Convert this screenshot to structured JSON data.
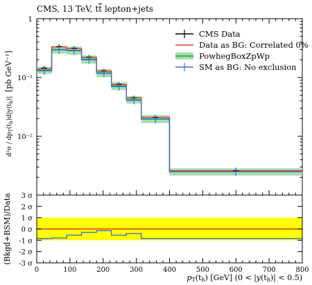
{
  "title": "CMS, 13 TeV, t̄t lepton+jets",
  "chart_data": {
    "type": "step-histogram-with-ratio",
    "title": "CMS, 13 TeV, tt̄ lepton+jets",
    "xlabel": "p_T(t_h) [GeV] (0 < |y(t_h)| < 0.5)",
    "ylabel": "d²σ / dp_T(t_h) d|y(t_h)| [pb GeV⁻¹]",
    "ratio_ylabel": "(Bkgd+BSM)/Data",
    "xlim": [
      0,
      800
    ],
    "ylim": [
      0.001,
      1
    ],
    "log_y": true,
    "bin_edges": [
      0,
      45,
      90,
      135,
      180,
      225,
      270,
      315,
      400,
      800
    ],
    "x_ticks": [
      0,
      100,
      200,
      300,
      400,
      500,
      600,
      700,
      800
    ],
    "x_tick_labels": [
      "0",
      "100",
      "200",
      "300",
      "400",
      "500",
      "600",
      "700",
      "800"
    ],
    "y_ticks": [
      {
        "value": 1,
        "label": "1"
      },
      {
        "value": 0.1,
        "label": "10⁻¹"
      },
      {
        "value": 0.01,
        "label": "10⁻²"
      }
    ],
    "ratio_ylim": [
      -3,
      3
    ],
    "ratio_ticks": [
      {
        "value": 3,
        "label": "3 σ"
      },
      {
        "value": 2,
        "label": "2 σ"
      },
      {
        "value": 1,
        "label": "1 σ"
      },
      {
        "value": 0,
        "label": "0 σ"
      },
      {
        "value": -1,
        "label": "-1 σ"
      },
      {
        "value": -2,
        "label": "-2 σ"
      },
      {
        "value": -3,
        "label": "-3 σ"
      }
    ],
    "ratio_band": [
      -1,
      1
    ],
    "legend_position": "top-right",
    "series": [
      {
        "name": "CMS Data",
        "color": "#000000",
        "style": "points-with-errors",
        "values": [
          0.145,
          0.335,
          0.315,
          0.222,
          0.13,
          0.077,
          0.045,
          0.021,
          0.0026
        ],
        "errors": [
          0.012,
          0.03,
          0.026,
          0.018,
          0.011,
          0.007,
          0.004,
          0.002,
          0.0002
        ]
      },
      {
        "name": "Data as BG: Correlated 0%",
        "color": "#e8382b",
        "style": "step",
        "values": [
          0.14,
          0.33,
          0.31,
          0.22,
          0.128,
          0.076,
          0.045,
          0.021,
          0.0026
        ]
      },
      {
        "name": "PowhegBoxZpWp",
        "color": "#1a9e3c",
        "band_color": "#a6dcae",
        "style": "step-with-band",
        "values": [
          0.133,
          0.3,
          0.29,
          0.205,
          0.12,
          0.072,
          0.042,
          0.0198,
          0.0025
        ],
        "band_low": [
          0.115,
          0.255,
          0.245,
          0.172,
          0.101,
          0.061,
          0.036,
          0.0168,
          0.00215
        ],
        "band_high": [
          0.152,
          0.345,
          0.335,
          0.238,
          0.139,
          0.083,
          0.048,
          0.0228,
          0.00285
        ]
      },
      {
        "name": "SM as BG: No exclusion",
        "color": "#3b6fd6",
        "style": "points-step",
        "values": [
          0.13,
          0.295,
          0.285,
          0.2,
          0.118,
          0.07,
          0.041,
          0.0195,
          0.0025
        ]
      }
    ],
    "ratio_series": [
      {
        "name": "Data as BG: Correlated 0%",
        "color": "#e8382b",
        "values": [
          0,
          0,
          0,
          0,
          0,
          0,
          0,
          0,
          0
        ]
      },
      {
        "name": "SM as BG: No exclusion",
        "color": "#3b6fd6",
        "values": [
          -0.85,
          -0.8,
          -0.55,
          -0.3,
          -0.15,
          -0.55,
          -0.4,
          -0.85,
          -0.85
        ]
      }
    ]
  }
}
